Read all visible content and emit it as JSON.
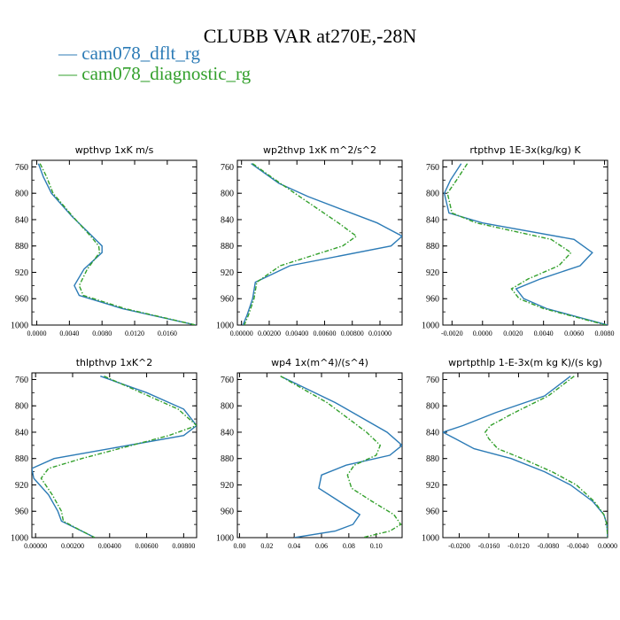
{
  "title": "CLUBB VAR at270E,-28N",
  "legend": [
    {
      "name": "cam078_dflt_rg",
      "color": "#2c7bb6"
    },
    {
      "name": "cam078_diagnostic_rg",
      "color": "#33a02c"
    }
  ],
  "chart_data": [
    {
      "type": "line",
      "title": "wpthvp   1xK m/s",
      "xlim": [
        -0.0006,
        0.0196
      ],
      "ylim": [
        1000,
        750
      ],
      "x_ticks": [
        0.0,
        0.004,
        0.008,
        0.012,
        0.016
      ],
      "x_tick_labels": [
        "0.0000",
        "0.0040",
        "0.0080",
        "0.0120",
        "0.0160"
      ],
      "y_ticks": [
        760,
        800,
        840,
        880,
        920,
        960,
        1000
      ],
      "series": [
        {
          "name": "cam078_dflt_rg",
          "y": [
            755,
            775,
            800,
            835,
            865,
            880,
            890,
            915,
            940,
            955,
            975,
            1000
          ],
          "x": [
            0.0002,
            0.0008,
            0.0018,
            0.0043,
            0.0068,
            0.008,
            0.008,
            0.0058,
            0.0046,
            0.0052,
            0.0105,
            0.0195
          ]
        },
        {
          "name": "cam078_diagnostic_rg",
          "y": [
            755,
            775,
            800,
            835,
            865,
            880,
            890,
            915,
            940,
            955,
            975,
            1000
          ],
          "x": [
            0.0004,
            0.0012,
            0.002,
            0.0044,
            0.0066,
            0.0076,
            0.0077,
            0.0062,
            0.0052,
            0.0057,
            0.0108,
            0.0195
          ]
        }
      ]
    },
    {
      "type": "line",
      "title": "wp2thvp   1xK m^2/s^2",
      "xlim": [
        -0.0003,
        0.0116
      ],
      "ylim": [
        1000,
        750
      ],
      "x_ticks": [
        0.0,
        0.002,
        0.004,
        0.006,
        0.008,
        0.01
      ],
      "x_tick_labels": [
        "0.00000",
        "0.00200",
        "0.00400",
        "0.00600",
        "0.00800",
        "0.01000"
      ],
      "y_ticks": [
        760,
        800,
        840,
        880,
        920,
        960,
        1000
      ],
      "series": [
        {
          "name": "cam078_dflt_rg",
          "y": [
            755,
            785,
            805,
            845,
            865,
            880,
            910,
            935,
            960,
            985,
            1000
          ],
          "x": [
            0.0007,
            0.0027,
            0.0048,
            0.0098,
            0.0116,
            0.0108,
            0.0035,
            0.001,
            0.0008,
            0.0004,
            0.0001
          ]
        },
        {
          "name": "cam078_diagnostic_rg",
          "y": [
            755,
            785,
            805,
            845,
            865,
            880,
            910,
            935,
            960,
            985,
            1000
          ],
          "x": [
            0.0008,
            0.0028,
            0.0042,
            0.007,
            0.0083,
            0.0073,
            0.0028,
            0.0011,
            0.0009,
            0.0005,
            0.0002
          ]
        }
      ]
    },
    {
      "type": "line",
      "title": "rtpthvp   1E-3x(kg/kg) K",
      "xlim": [
        -0.0026,
        0.0082
      ],
      "ylim": [
        1000,
        750
      ],
      "x_ticks": [
        -0.002,
        0.0,
        0.002,
        0.004,
        0.006,
        0.008
      ],
      "x_tick_labels": [
        "-0.0020",
        "0.0000",
        "0.0020",
        "0.0040",
        "0.0060",
        "0.0080"
      ],
      "y_ticks": [
        760,
        800,
        840,
        880,
        920,
        960,
        1000
      ],
      "series": [
        {
          "name": "cam078_dflt_rg",
          "y": [
            755,
            780,
            800,
            810,
            830,
            845,
            870,
            890,
            910,
            930,
            945,
            960,
            975,
            1000
          ],
          "x": [
            -0.0014,
            -0.0021,
            -0.0025,
            -0.0024,
            -0.0022,
            0.0,
            0.006,
            0.0072,
            0.0064,
            0.0038,
            0.0022,
            0.0027,
            0.0042,
            0.0082
          ]
        },
        {
          "name": "cam078_diagnostic_rg",
          "y": [
            755,
            780,
            800,
            810,
            830,
            845,
            870,
            890,
            910,
            930,
            945,
            960,
            975,
            1000
          ],
          "x": [
            -0.001,
            -0.0017,
            -0.0023,
            -0.0022,
            -0.002,
            -0.0004,
            0.0045,
            0.0058,
            0.005,
            0.003,
            0.0019,
            0.0024,
            0.004,
            0.0081
          ]
        }
      ]
    },
    {
      "type": "line",
      "title": "thlpthvp   1xK^2",
      "xlim": [
        -0.0002,
        0.0087
      ],
      "ylim": [
        1000,
        750
      ],
      "x_ticks": [
        0.0,
        0.002,
        0.004,
        0.006,
        0.008
      ],
      "x_tick_labels": [
        "0.00000",
        "0.00200",
        "0.00400",
        "0.00600",
        "0.00800"
      ],
      "y_ticks": [
        760,
        800,
        840,
        880,
        920,
        960,
        1000
      ],
      "series": [
        {
          "name": "cam078_dflt_rg",
          "y": [
            755,
            780,
            805,
            830,
            845,
            880,
            895,
            910,
            935,
            960,
            975,
            990,
            1000
          ],
          "x": [
            0.0035,
            0.006,
            0.008,
            0.0087,
            0.008,
            0.001,
            -0.0002,
            -0.0001,
            0.0007,
            0.0012,
            0.0014,
            0.0025,
            0.0032
          ]
        },
        {
          "name": "cam078_diagnostic_rg",
          "y": [
            755,
            780,
            805,
            830,
            845,
            880,
            895,
            910,
            935,
            960,
            975,
            990,
            1000
          ],
          "x": [
            0.0037,
            0.0057,
            0.0077,
            0.0087,
            0.0072,
            0.0025,
            0.0007,
            0.0003,
            0.0009,
            0.0014,
            0.0015,
            0.0025,
            0.0032
          ]
        }
      ]
    },
    {
      "type": "line",
      "title": "wp4   1x(m^4)/(s^4)",
      "xlim": [
        -0.0016,
        0.119
      ],
      "ylim": [
        1000,
        750
      ],
      "x_ticks": [
        0.0,
        0.02,
        0.04,
        0.06,
        0.08,
        0.1
      ],
      "x_tick_labels": [
        "0.00",
        "0.02",
        "0.04",
        "0.06",
        "0.08",
        "0.10"
      ],
      "y_ticks": [
        760,
        800,
        840,
        880,
        920,
        960,
        1000
      ],
      "series": [
        {
          "name": "cam078_dflt_rg",
          "y": [
            755,
            795,
            840,
            860,
            875,
            890,
            905,
            925,
            945,
            965,
            980,
            990,
            1000
          ],
          "x": [
            0.03,
            0.07,
            0.108,
            0.119,
            0.11,
            0.078,
            0.06,
            0.058,
            0.073,
            0.088,
            0.083,
            0.07,
            0.04
          ]
        },
        {
          "name": "cam078_diagnostic_rg",
          "y": [
            755,
            795,
            840,
            860,
            875,
            890,
            905,
            925,
            945,
            965,
            980,
            990,
            1000
          ],
          "x": [
            0.03,
            0.064,
            0.093,
            0.103,
            0.1,
            0.084,
            0.079,
            0.082,
            0.097,
            0.113,
            0.118,
            0.11,
            0.09
          ]
        }
      ]
    },
    {
      "type": "line",
      "title": "wprtpthlp   1-E-3x(m kg K)/(s kg)",
      "xlim": [
        -0.0222,
        0.0
      ],
      "ylim": [
        1000,
        750
      ],
      "x_ticks": [
        -0.02,
        -0.016,
        -0.012,
        -0.008,
        -0.004,
        0.0
      ],
      "x_tick_labels": [
        "-0.0200",
        "-0.0160",
        "-0.0120",
        "-0.0080",
        "-0.0040",
        "0.0000"
      ],
      "y_ticks": [
        760,
        800,
        840,
        880,
        920,
        960,
        1000
      ],
      "series": [
        {
          "name": "cam078_dflt_rg",
          "y": [
            755,
            785,
            810,
            830,
            840,
            850,
            865,
            880,
            900,
            920,
            945,
            965,
            980,
            1000
          ],
          "x": [
            -0.005,
            -0.0085,
            -0.015,
            -0.0195,
            -0.0222,
            -0.0205,
            -0.018,
            -0.013,
            -0.0085,
            -0.005,
            -0.002,
            -0.0005,
            -0.0001,
            0.0
          ]
        },
        {
          "name": "cam078_diagnostic_rg",
          "y": [
            755,
            785,
            810,
            830,
            840,
            850,
            865,
            880,
            900,
            920,
            945,
            965,
            980,
            1000
          ],
          "x": [
            -0.0045,
            -0.008,
            -0.0125,
            -0.0158,
            -0.0165,
            -0.016,
            -0.0148,
            -0.0115,
            -0.0075,
            -0.0042,
            -0.0018,
            -0.0005,
            -0.0001,
            0.0
          ]
        }
      ]
    }
  ]
}
